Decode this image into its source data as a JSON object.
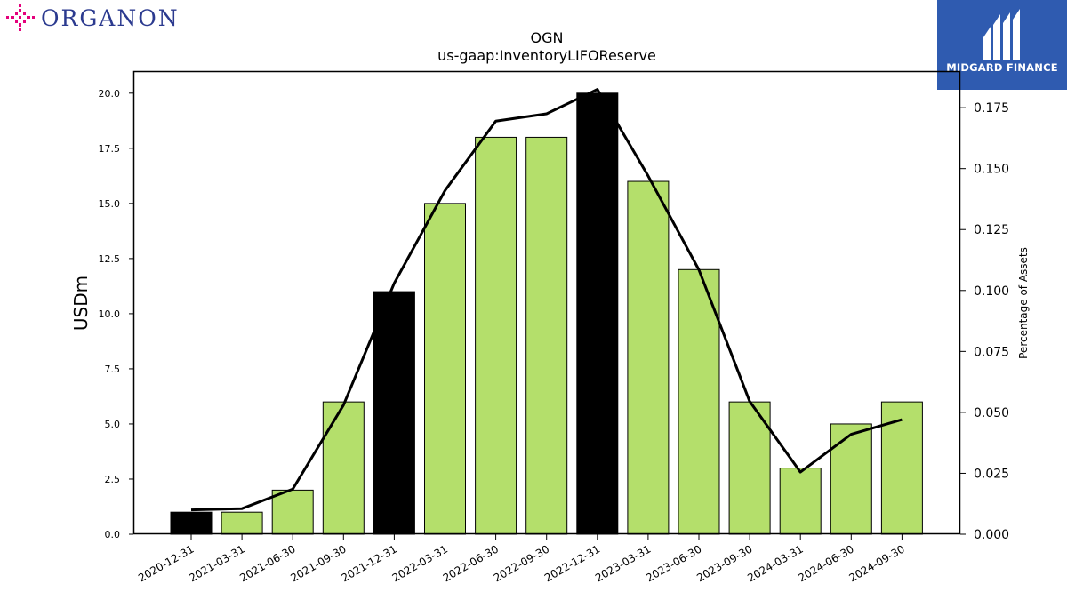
{
  "brand_left": {
    "name": "ORGANON",
    "color": "#2b3a8f",
    "icon_color": "#e4007c"
  },
  "brand_right": {
    "name": "MIDGARD FINANCE",
    "background": "#2f5bb0"
  },
  "chart_data": {
    "type": "bar",
    "title": "OGN",
    "subtitle": "us-gaap:InventoryLIFOReserve",
    "ylabel": "USDm",
    "y2label": "Percentage of Assets",
    "categories": [
      "2020-12-31",
      "2021-03-31",
      "2021-06-30",
      "2021-09-30",
      "2021-12-31",
      "2022-03-31",
      "2022-06-30",
      "2022-09-30",
      "2022-12-31",
      "2023-03-31",
      "2023-06-30",
      "2023-09-30",
      "2024-03-31",
      "2024-06-30",
      "2024-09-30"
    ],
    "series": [
      {
        "values": [
          1,
          1,
          2,
          6,
          11,
          15,
          18,
          18,
          20,
          16,
          12,
          6,
          3,
          5,
          6
        ]
      },
      {
        "type": "line",
        "axis": "right",
        "values": [
          0.01,
          0.0105,
          0.0185,
          0.053,
          0.103,
          0.141,
          0.1695,
          0.1725,
          0.1825,
          0.147,
          0.1085,
          0.0545,
          0.0255,
          0.041,
          0.047
        ]
      }
    ],
    "bar_colors": [
      "#000000",
      "#b4df6b",
      "#b4df6b",
      "#b4df6b",
      "#000000",
      "#b4df6b",
      "#b4df6b",
      "#b4df6b",
      "#000000",
      "#b4df6b",
      "#b4df6b",
      "#b4df6b",
      "#b4df6b",
      "#b4df6b",
      "#b4df6b"
    ],
    "ylim": [
      0,
      21
    ],
    "y2lim": [
      0,
      0.19
    ],
    "yticks": [
      "0.0",
      "2.5",
      "5.0",
      "7.5",
      "10.0",
      "12.5",
      "15.0",
      "17.5",
      "20.0"
    ],
    "y2ticks": [
      "0.000",
      "0.025",
      "0.050",
      "0.075",
      "0.100",
      "0.125",
      "0.150",
      "0.175"
    ],
    "grid": false,
    "legend": "none"
  }
}
